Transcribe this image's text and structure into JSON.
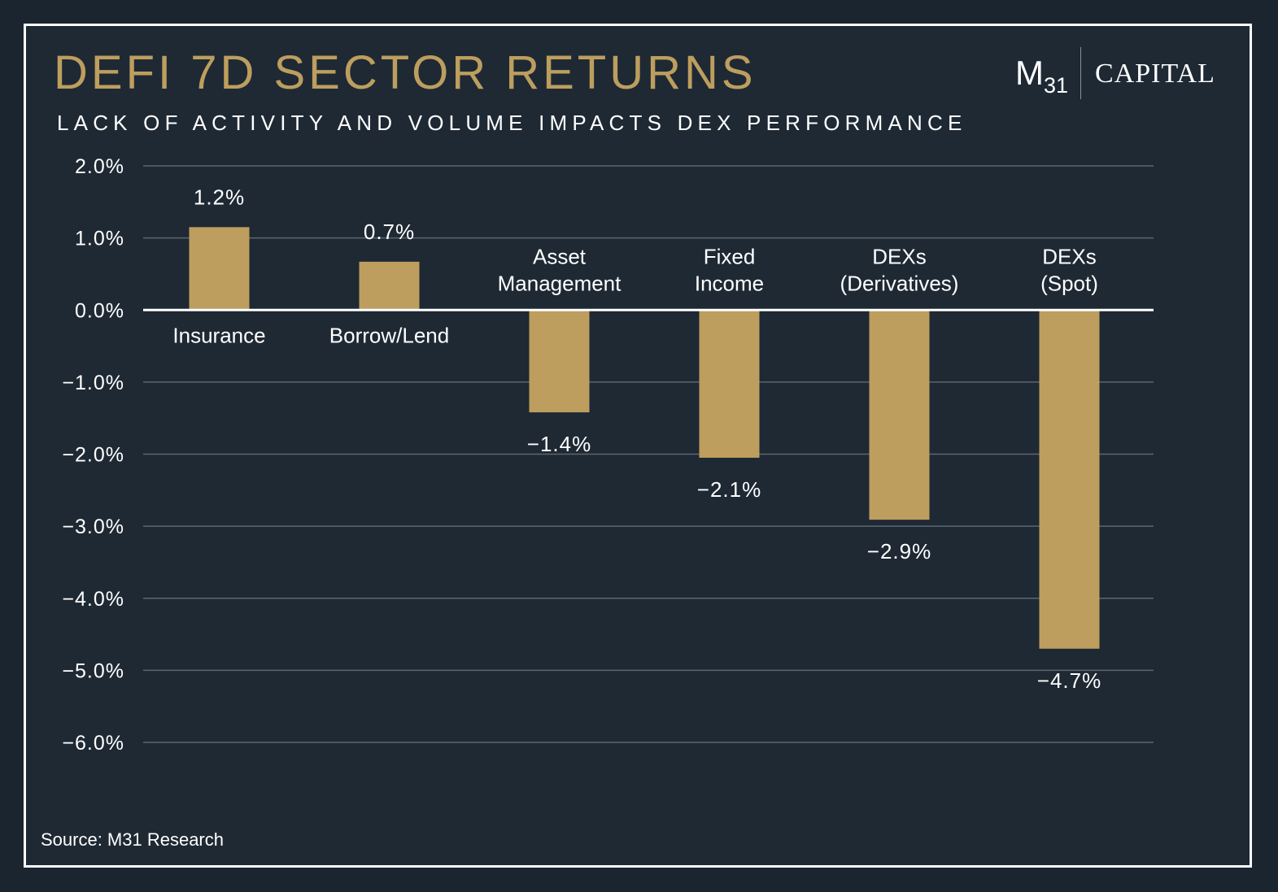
{
  "header": {
    "title": "DEFI 7D SECTOR RETURNS",
    "subtitle": "LACK OF ACTIVITY AND VOLUME IMPACTS DEX PERFORMANCE",
    "logo": {
      "mark": "M",
      "mark_sub": "31",
      "text": "CAPITAL"
    }
  },
  "footer": {
    "source": "Source: M31 Research"
  },
  "colors": {
    "bar": "#bd9e5e",
    "background": "#1e2934",
    "grid": "#5d666e",
    "zero_line": "#ffffff"
  },
  "chart_data": {
    "type": "bar",
    "title": "DEFI 7D SECTOR RETURNS",
    "subtitle": "LACK OF ACTIVITY AND VOLUME IMPACTS DEX PERFORMANCE",
    "categories": [
      [
        "Insurance"
      ],
      [
        "Borrow/Lend"
      ],
      [
        "Asset",
        "Management"
      ],
      [
        "Fixed",
        "Income"
      ],
      [
        "DEXs",
        "(Derivatives)"
      ],
      [
        "DEXs",
        "(Spot)"
      ]
    ],
    "values": [
      1.15,
      0.67,
      -1.42,
      -2.05,
      -2.91,
      -4.7
    ],
    "value_labels": [
      "1.2%",
      "0.7%",
      "−1.4%",
      "−2.1%",
      "−2.9%",
      "−4.7%"
    ],
    "ylim": [
      -6.0,
      2.0
    ],
    "yticks": [
      2.0,
      1.0,
      0.0,
      -1.0,
      -2.0,
      -3.0,
      -4.0,
      -5.0,
      -6.0
    ],
    "ytick_labels": [
      "2.0%",
      "1.0%",
      "0.0%",
      "−1.0%",
      "−2.0%",
      "−3.0%",
      "−4.0%",
      "−5.0%",
      "−6.0%"
    ],
    "grid": true,
    "legend": "none",
    "xlabel": "",
    "ylabel": ""
  }
}
